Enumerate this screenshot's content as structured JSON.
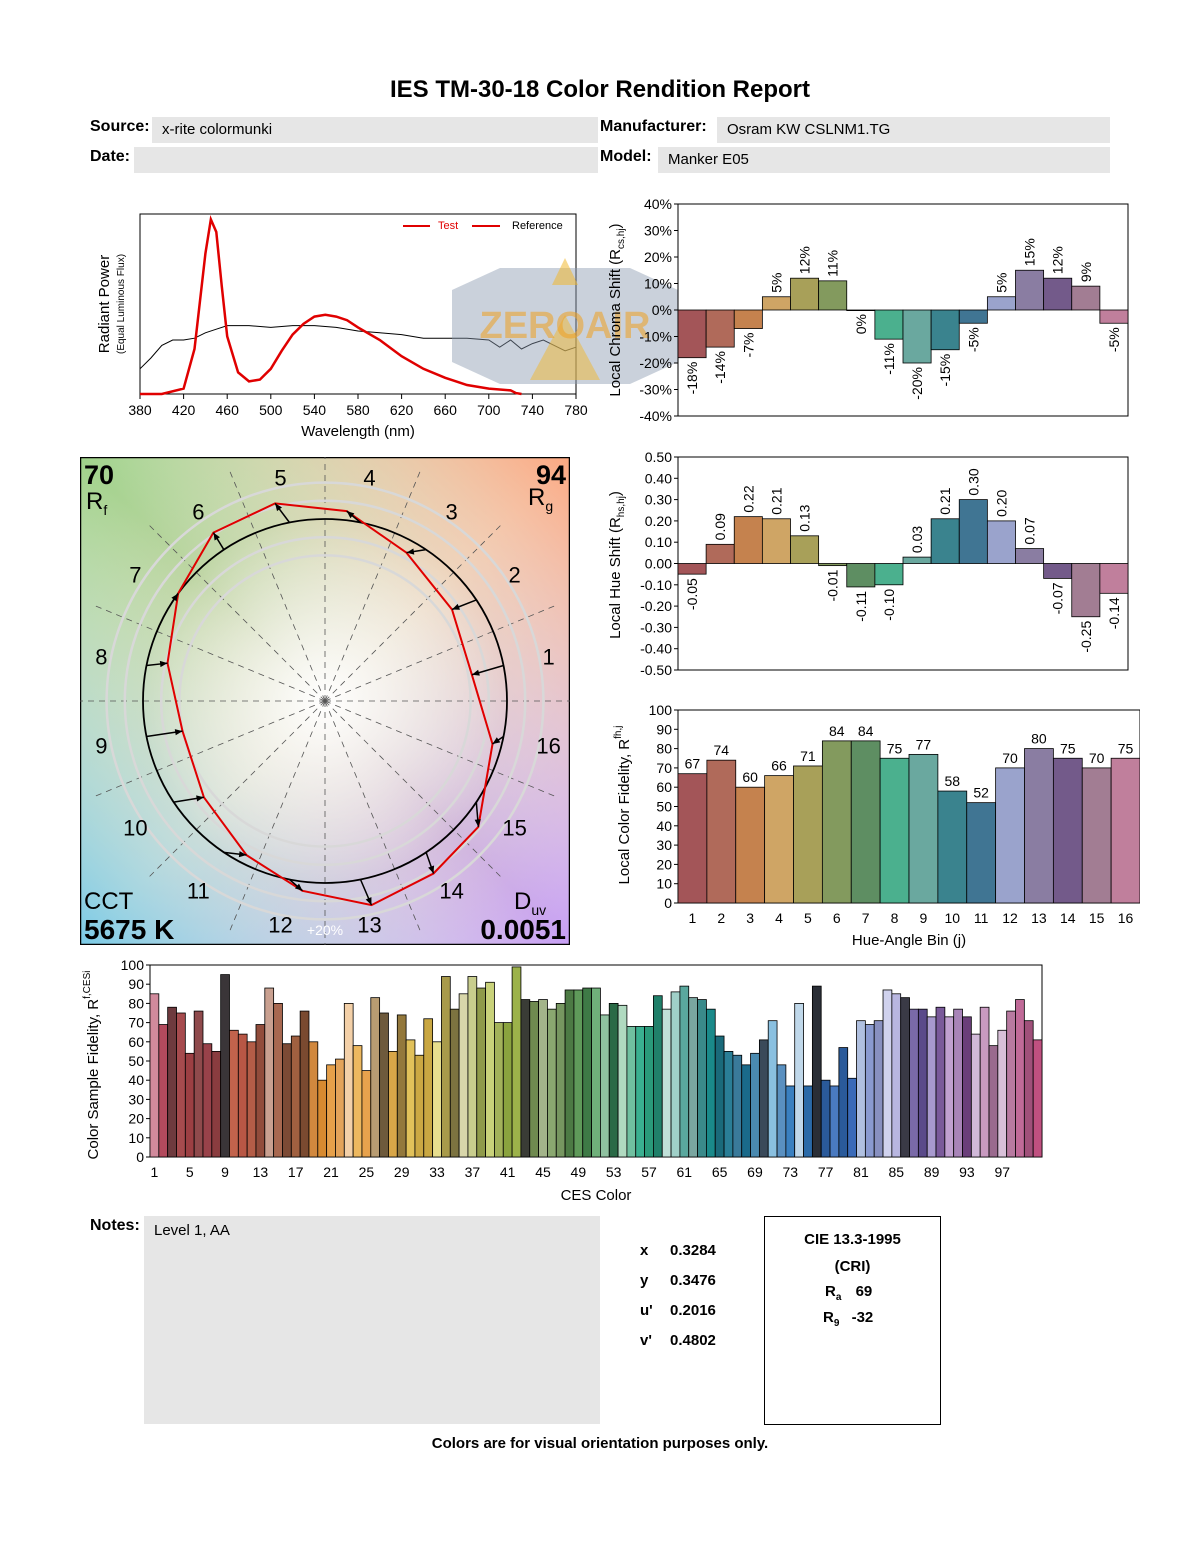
{
  "header": {
    "title": "IES TM-30-18 Color Rendition Report",
    "source_label": "Source:",
    "source_value": "x-rite colormunki",
    "manufacturer_label": "Manufacturer:",
    "manufacturer_value": "Osram KW CSLNM1.TG",
    "date_label": "Date:",
    "date_value": "",
    "model_label": "Model:",
    "model_value": "Manker E05"
  },
  "colors": {
    "test_line": "#e00000",
    "reference_line": "#000000",
    "panel_bg": "#e6e6e6",
    "bins": [
      "#a35558",
      "#b06a5a",
      "#c5824e",
      "#cfa565",
      "#a8a059",
      "#839a5e",
      "#5e8e62",
      "#4bb08e",
      "#6aa89f",
      "#3a838e",
      "#407593",
      "#9aa3cc",
      "#8a7da2",
      "#735a8a",
      "#a27d93",
      "#c07f9c"
    ]
  },
  "chart_data": [
    {
      "id": "spectrum",
      "type": "line",
      "xlabel": "Wavelength (nm)",
      "ylabel": "Radiant Power",
      "ylabel_sub": "(Equal Luminous Flux)",
      "xlim": [
        380,
        780
      ],
      "x_ticks": [
        380,
        420,
        460,
        500,
        540,
        580,
        620,
        660,
        700,
        740,
        780
      ],
      "legend": [
        "Test",
        "Reference"
      ],
      "series": [
        {
          "name": "Test",
          "x": [
            380,
            400,
            420,
            430,
            440,
            445,
            450,
            455,
            460,
            470,
            480,
            490,
            500,
            510,
            520,
            530,
            540,
            550,
            560,
            570,
            580,
            600,
            620,
            640,
            660,
            680,
            700,
            720,
            725,
            730
          ],
          "y": [
            0,
            0,
            0.03,
            0.25,
            0.78,
            0.97,
            0.9,
            0.6,
            0.32,
            0.12,
            0.07,
            0.08,
            0.14,
            0.24,
            0.33,
            0.39,
            0.43,
            0.44,
            0.43,
            0.41,
            0.37,
            0.3,
            0.21,
            0.14,
            0.09,
            0.05,
            0.03,
            0.02,
            0.005,
            0
          ]
        },
        {
          "name": "Reference",
          "x": [
            380,
            390,
            400,
            410,
            420,
            430,
            440,
            450,
            460,
            480,
            500,
            520,
            540,
            560,
            580,
            600,
            620,
            640,
            660,
            680,
            700,
            710,
            720,
            730,
            740,
            750,
            760,
            770,
            780
          ],
          "y": [
            0.14,
            0.2,
            0.27,
            0.3,
            0.3,
            0.31,
            0.34,
            0.36,
            0.38,
            0.38,
            0.37,
            0.38,
            0.38,
            0.37,
            0.35,
            0.34,
            0.33,
            0.31,
            0.31,
            0.31,
            0.3,
            0.26,
            0.3,
            0.25,
            0.28,
            0.3,
            0.27,
            0.24,
            0.26
          ]
        }
      ]
    },
    {
      "id": "chroma-shift",
      "type": "bar",
      "ylabel": "Local Chroma Shift (R",
      "ylabel_sub": "cs,hj",
      "ylim": [
        -40,
        40
      ],
      "y_ticks": [
        "40%",
        "30%",
        "20%",
        "10%",
        "0%",
        "-10%",
        "-20%",
        "-30%",
        "-40%"
      ],
      "categories": [
        1,
        2,
        3,
        4,
        5,
        6,
        7,
        8,
        9,
        10,
        11,
        12,
        13,
        14,
        15,
        16
      ],
      "values": [
        -18,
        -14,
        -7,
        5,
        12,
        11,
        0,
        -11,
        -20,
        -15,
        -5,
        5,
        15,
        12,
        9,
        -5
      ],
      "labels": [
        "-18%",
        "-14%",
        "-7%",
        "5%",
        "12%",
        "11%",
        "0%",
        "-11%",
        "-20%",
        "-15%",
        "-5%",
        "5%",
        "15%",
        "12%",
        "9%",
        "-5%"
      ]
    },
    {
      "id": "hue-shift",
      "type": "bar",
      "ylabel": "Local Hue Shift (R",
      "ylabel_sub": "hs,hj",
      "ylim": [
        -0.5,
        0.5
      ],
      "y_ticks": [
        "0.50",
        "0.40",
        "0.30",
        "0.20",
        "0.10",
        "0.00",
        "-0.10",
        "-0.20",
        "-0.30",
        "-0.40",
        "-0.50"
      ],
      "categories": [
        1,
        2,
        3,
        4,
        5,
        6,
        7,
        8,
        9,
        10,
        11,
        12,
        13,
        14,
        15,
        16
      ],
      "values": [
        -0.05,
        0.09,
        0.22,
        0.21,
        0.13,
        -0.01,
        -0.11,
        -0.1,
        0.03,
        0.21,
        0.3,
        0.2,
        0.07,
        -0.07,
        -0.25,
        -0.14
      ],
      "labels": [
        "-0.05",
        "0.09",
        "0.22",
        "0.21",
        "0.13",
        "-0.01",
        "-0.11",
        "-0.10",
        "0.03",
        "0.21",
        "0.30",
        "0.20",
        "0.07",
        "-0.07",
        "-0.25",
        "-0.14"
      ]
    },
    {
      "id": "local-fidelity",
      "type": "bar",
      "ylabel": "Local Color Fidelity, R",
      "ylabel_sub": "fh,j",
      "xlabel": "Hue-Angle Bin (j)",
      "ylim": [
        0,
        100
      ],
      "y_ticks": [
        "100",
        "90",
        "80",
        "70",
        "60",
        "50",
        "40",
        "30",
        "20",
        "10",
        "0"
      ],
      "categories": [
        "1",
        "2",
        "3",
        "4",
        "5",
        "6",
        "7",
        "8",
        "9",
        "10",
        "11",
        "12",
        "13",
        "14",
        "15",
        "16"
      ],
      "values": [
        67,
        74,
        60,
        66,
        71,
        84,
        84,
        75,
        77,
        58,
        52,
        70,
        80,
        75,
        70,
        75
      ],
      "labels": [
        "67",
        "74",
        "60",
        "66",
        "71",
        "84",
        "84",
        "75",
        "77",
        "58",
        "52",
        "70",
        "80",
        "75",
        "70",
        "75"
      ]
    },
    {
      "id": "ces-fidelity",
      "type": "bar",
      "ylabel": "Color Sample Fidelity, R",
      "ylabel_sub": "f,CESi",
      "xlabel": "CES Color",
      "ylim": [
        0,
        100
      ],
      "y_ticks": [
        "100",
        "90",
        "80",
        "70",
        "60",
        "50",
        "40",
        "30",
        "20",
        "10",
        "0"
      ],
      "x_ticks": [
        "1",
        "5",
        "9",
        "13",
        "17",
        "21",
        "25",
        "29",
        "33",
        "37",
        "41",
        "45",
        "49",
        "53",
        "57",
        "61",
        "65",
        "69",
        "73",
        "77",
        "81",
        "85",
        "89",
        "93",
        "97"
      ],
      "values": [
        85,
        69,
        78,
        75,
        54,
        76,
        59,
        55,
        95,
        66,
        64,
        60,
        69,
        88,
        80,
        59,
        63,
        76,
        60,
        40,
        48,
        51,
        80,
        58,
        45,
        83,
        75,
        55,
        74,
        61,
        53,
        72,
        60,
        94,
        77,
        85,
        94,
        88,
        91,
        70,
        70,
        99,
        82,
        81,
        82,
        77,
        80,
        87,
        87,
        88,
        88,
        74,
        80,
        79,
        68,
        68,
        68,
        84,
        77,
        86,
        89,
        83,
        82,
        77,
        63,
        55,
        53,
        48,
        54,
        61,
        71,
        48,
        37,
        80,
        37,
        89,
        40,
        37,
        57,
        41,
        71,
        69,
        71,
        87,
        85,
        83,
        77,
        77,
        73,
        78,
        73,
        77,
        73,
        64,
        78,
        58,
        66,
        76,
        82,
        71,
        61
      ],
      "colors": [
        "#d18a9c",
        "#b34a5d",
        "#6e3a3e",
        "#a64b4e",
        "#9c3f43",
        "#8f4a4c",
        "#99424a",
        "#8a3c3f",
        "#3a3538",
        "#c2634c",
        "#b85745",
        "#b45d47",
        "#914c3b",
        "#c9a090",
        "#a86850",
        "#7c4a35",
        "#a06040",
        "#7a4a30",
        "#d1883e",
        "#d78a30",
        "#e6a04a",
        "#e3a35a",
        "#f3d0a8",
        "#edb85f",
        "#e7a24d",
        "#b89c72",
        "#6e5a3c",
        "#d8a648",
        "#93783c",
        "#e1c15a",
        "#cba843",
        "#c9a742",
        "#e7de8e",
        "#a89a4a",
        "#7c7340",
        "#d8d6aa",
        "#c8cd8d",
        "#8f9a4a",
        "#c9d27a",
        "#a3b25a",
        "#8aa33e",
        "#9cb24a",
        "#3a3c36",
        "#6f8a4f",
        "#a3b48a",
        "#8aa870",
        "#769660",
        "#4c7a44",
        "#5f9a5a",
        "#3e7a46",
        "#6fb07a",
        "#8fc1a0",
        "#2a6a46",
        "#b0dac0",
        "#70c0a0",
        "#3ab090",
        "#2a9a7a",
        "#20806a",
        "#c0e0d8",
        "#a0d0c8",
        "#5aa89e",
        "#7aa6a0",
        "#3a8a8a",
        "#1a8a8a",
        "#1a6a7a",
        "#2a7e96",
        "#3a7a9a",
        "#1a6a8a",
        "#4a8ab0",
        "#3a4a5a",
        "#8ac0e0",
        "#5a90c0",
        "#3a80c0",
        "#c0d8ea",
        "#2a6aa8",
        "#2a2e36",
        "#2a5a9a",
        "#4a7ac0",
        "#2a5a9a",
        "#3a6ab8",
        "#b0c0e0",
        "#8a9ad0",
        "#8890c0",
        "#d0d2ee",
        "#b8b6e0",
        "#3a3a46",
        "#7a6aa8",
        "#5a4a8a",
        "#a89ace",
        "#7a5a9a",
        "#c0a0d0",
        "#a884b8",
        "#6a3e7a",
        "#d0b8d8",
        "#c89ac0",
        "#9a6a8e",
        "#d8c0d8",
        "#b87aa0",
        "#c06a98",
        "#a0507a",
        "#c05080"
      ]
    },
    {
      "id": "color-vector-graphic",
      "type": "line",
      "rf": "70",
      "rf_label": "R",
      "rf_sub": "f",
      "rg": "94",
      "rg_label": "R",
      "rg_sub": "g",
      "cct_label": "CCT",
      "cct_value": "5675 K",
      "duv_label": "D",
      "duv_sub": "uv",
      "duv_value": "0.0051",
      "ring_label": "+20%",
      "bin_numbers": [
        "1",
        "2",
        "3",
        "4",
        "5",
        "6",
        "7",
        "8",
        "9",
        "10",
        "11",
        "12",
        "13",
        "14",
        "15",
        "16"
      ],
      "chroma_shift": [
        -0.18,
        -0.14,
        -0.07,
        0.05,
        0.12,
        0.11,
        0.0,
        -0.11,
        -0.2,
        -0.15,
        -0.05,
        0.05,
        0.15,
        0.12,
        0.09,
        -0.05
      ],
      "hue_shift": [
        -0.05,
        0.09,
        0.22,
        0.21,
        0.13,
        -0.01,
        -0.11,
        -0.1,
        0.03,
        0.21,
        0.3,
        0.2,
        0.07,
        -0.07,
        -0.25,
        -0.14
      ]
    }
  ],
  "notes": {
    "label": "Notes:",
    "value": "Level 1, AA"
  },
  "chromaticity": {
    "x_label": "x",
    "x_value": "0.3284",
    "y_label": "y",
    "y_value": "0.3476",
    "u_label": "u'",
    "u_value": "0.2016",
    "v_label": "v'",
    "v_value": "0.4802"
  },
  "cri": {
    "title": "CIE 13.3-1995",
    "subtitle": "(CRI)",
    "ra_label": "R",
    "ra_sub": "a",
    "ra_value": "69",
    "r9_label": "R",
    "r9_sub": "9",
    "r9_value": "-32"
  },
  "watermark": {
    "text": "ZEROAIR"
  },
  "footer": "Colors are for visual orientation purposes only."
}
